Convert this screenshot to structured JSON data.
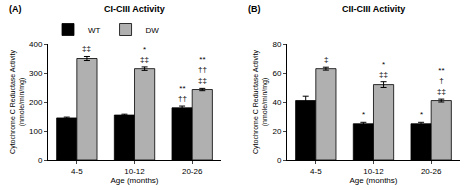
{
  "chart_data": [
    {
      "type": "bar",
      "panel": "(A)",
      "title": "CI-CIII Activity",
      "x_label": "Age (months)",
      "y_label": "Cytochrome C Reductase Activity\n(nmole/min/mg)",
      "categories": [
        "4-5",
        "10-12",
        "20-26"
      ],
      "series": [
        {
          "name": "WT",
          "color": "#000000",
          "values": [
            145,
            155,
            180
          ],
          "errors": [
            3,
            3,
            6
          ]
        },
        {
          "name": "DW",
          "color": "#b0b0b0",
          "values": [
            350,
            315,
            243
          ],
          "errors": [
            7,
            6,
            4
          ]
        }
      ],
      "ylim": [
        0,
        400
      ],
      "yticks": [
        0,
        100,
        200,
        300,
        400
      ],
      "grid": false,
      "legend": "top left",
      "annotations": [
        {
          "category": "4-5",
          "series": "DW",
          "text": [
            "‡‡"
          ]
        },
        {
          "category": "10-12",
          "series": "DW",
          "text": [
            "*",
            "‡‡"
          ]
        },
        {
          "category": "20-26",
          "series": "WT",
          "text": [
            "**",
            "††"
          ]
        },
        {
          "category": "20-26",
          "series": "DW",
          "text": [
            "**",
            "††",
            "‡‡"
          ]
        }
      ]
    },
    {
      "type": "bar",
      "panel": "(B)",
      "title": "CII-CIII Activity",
      "x_label": "Age (months)",
      "y_label": "Cytochrome C Reductase Activity\n(nmole/min/mg)",
      "categories": [
        "4-5",
        "10-12",
        "20-26"
      ],
      "series": [
        {
          "name": "WT",
          "color": "#000000",
          "values": [
            41,
            25,
            25
          ],
          "errors": [
            3,
            1,
            1
          ]
        },
        {
          "name": "DW",
          "color": "#b0b0b0",
          "values": [
            63,
            52,
            41
          ],
          "errors": [
            1,
            2,
            1
          ]
        }
      ],
      "ylim": [
        0,
        80
      ],
      "yticks": [
        0,
        20,
        40,
        60,
        80
      ],
      "grid": false,
      "annotations": [
        {
          "category": "4-5",
          "series": "DW",
          "text": [
            "‡"
          ]
        },
        {
          "category": "10-12",
          "series": "WT",
          "text": [
            "*"
          ]
        },
        {
          "category": "10-12",
          "series": "DW",
          "text": [
            "*",
            "‡‡"
          ]
        },
        {
          "category": "20-26",
          "series": "WT",
          "text": [
            "*"
          ]
        },
        {
          "category": "20-26",
          "series": "DW",
          "text": [
            "**",
            "†",
            "‡‡"
          ]
        }
      ]
    }
  ]
}
